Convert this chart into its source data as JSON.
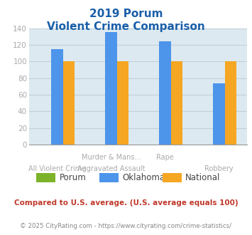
{
  "title_line1": "2019 Porum",
  "title_line2": "Violent Crime Comparison",
  "series": {
    "Porum": [
      null,
      null,
      null,
      null
    ],
    "Oklahoma": [
      115,
      135,
      124,
      74
    ],
    "National": [
      100,
      100,
      100,
      100
    ]
  },
  "colors": {
    "Porum": "#7db32a",
    "Oklahoma": "#4d94eb",
    "National": "#f5a623"
  },
  "row1_labels": [
    "",
    "Murder & Mans...",
    "Rape",
    ""
  ],
  "row2_labels": [
    "All Violent Crime",
    "Aggravated Assault",
    "",
    "Robbery"
  ],
  "ylim": [
    0,
    140
  ],
  "yticks": [
    0,
    20,
    40,
    60,
    80,
    100,
    120,
    140
  ],
  "plot_bg": "#dce9f0",
  "grid_color": "#c0d0da",
  "footer_text": "Compared to U.S. average. (U.S. average equals 100)",
  "copyright_text": "© 2025 CityRating.com - https://www.cityrating.com/crime-statistics/",
  "title_color": "#1a5fa8",
  "footer_color": "#c0392b",
  "copyright_color": "#888888",
  "xlabel_color": "#aaaaaa",
  "ytick_color": "#aaaaaa"
}
